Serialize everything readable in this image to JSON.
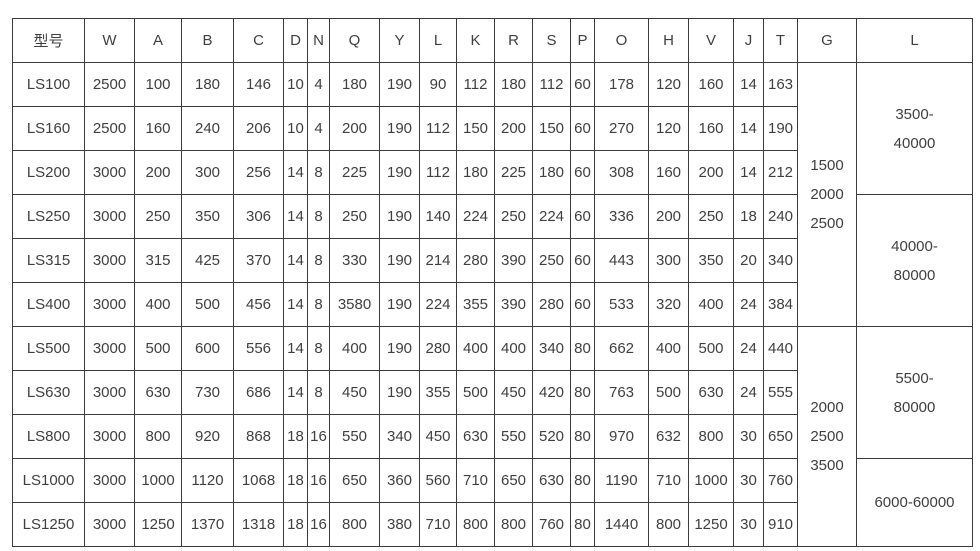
{
  "colors": {
    "background": "#ffffff",
    "border": "#3b3b3b",
    "text": "#3f3f3f"
  },
  "table": {
    "columns": [
      "型号",
      "W",
      "A",
      "B",
      "C",
      "D",
      "N",
      "Q",
      "Y",
      "L",
      "K",
      "R",
      "S",
      "P",
      "O",
      "H",
      "V",
      "J",
      "T",
      "G",
      "L"
    ],
    "rows": [
      {
        "model": "LS100",
        "values": [
          "2500",
          "100",
          "180",
          "146",
          "10",
          "4",
          "180",
          "190",
          "90",
          "112",
          "180",
          "112",
          "60",
          "178",
          "120",
          "160",
          "14",
          "163"
        ]
      },
      {
        "model": "LS160",
        "values": [
          "2500",
          "160",
          "240",
          "206",
          "10",
          "4",
          "200",
          "190",
          "112",
          "150",
          "200",
          "150",
          "60",
          "270",
          "120",
          "160",
          "14",
          "190"
        ]
      },
      {
        "model": "LS200",
        "values": [
          "3000",
          "200",
          "300",
          "256",
          "14",
          "8",
          "225",
          "190",
          "112",
          "180",
          "225",
          "180",
          "60",
          "308",
          "160",
          "200",
          "14",
          "212"
        ]
      },
      {
        "model": "LS250",
        "values": [
          "3000",
          "250",
          "350",
          "306",
          "14",
          "8",
          "250",
          "190",
          "140",
          "224",
          "250",
          "224",
          "60",
          "336",
          "200",
          "250",
          "18",
          "240"
        ]
      },
      {
        "model": "LS315",
        "values": [
          "3000",
          "315",
          "425",
          "370",
          "14",
          "8",
          "330",
          "190",
          "214",
          "280",
          "390",
          "250",
          "60",
          "443",
          "300",
          "350",
          "20",
          "340"
        ]
      },
      {
        "model": "LS400",
        "values": [
          "3000",
          "400",
          "500",
          "456",
          "14",
          "8",
          "3580",
          "190",
          "224",
          "355",
          "390",
          "280",
          "60",
          "533",
          "320",
          "400",
          "24",
          "384"
        ]
      },
      {
        "model": "LS500",
        "values": [
          "3000",
          "500",
          "600",
          "556",
          "14",
          "8",
          "400",
          "190",
          "280",
          "400",
          "400",
          "340",
          "80",
          "662",
          "400",
          "500",
          "24",
          "440"
        ]
      },
      {
        "model": "LS630",
        "values": [
          "3000",
          "630",
          "730",
          "686",
          "14",
          "8",
          "450",
          "190",
          "355",
          "500",
          "450",
          "420",
          "80",
          "763",
          "500",
          "630",
          "24",
          "555"
        ]
      },
      {
        "model": "LS800",
        "values": [
          "3000",
          "800",
          "920",
          "868",
          "18",
          "16",
          "550",
          "340",
          "450",
          "630",
          "550",
          "520",
          "80",
          "970",
          "632",
          "800",
          "30",
          "650"
        ]
      },
      {
        "model": "LS1000",
        "values": [
          "3000",
          "1000",
          "1120",
          "1068",
          "18",
          "16",
          "650",
          "360",
          "560",
          "710",
          "650",
          "630",
          "80",
          "1190",
          "710",
          "1000",
          "30",
          "760"
        ]
      },
      {
        "model": "LS1250",
        "values": [
          "3000",
          "1250",
          "1370",
          "1318",
          "18",
          "16",
          "800",
          "380",
          "710",
          "800",
          "800",
          "760",
          "80",
          "1440",
          "800",
          "1250",
          "30",
          "910"
        ]
      }
    ],
    "g_groups": [
      {
        "span": 6,
        "lines": [
          "1500",
          "2000",
          "2500"
        ]
      },
      {
        "span": 5,
        "lines": [
          "2000",
          "2500",
          "3500"
        ]
      }
    ],
    "l_groups": [
      {
        "span": 3,
        "lines": [
          "3500-",
          "40000"
        ]
      },
      {
        "span": 3,
        "lines": [
          "40000-",
          "80000"
        ]
      },
      {
        "span": 3,
        "lines": [
          "5500-",
          "80000"
        ]
      },
      {
        "span": 2,
        "lines": [
          "6000-60000"
        ]
      }
    ]
  }
}
